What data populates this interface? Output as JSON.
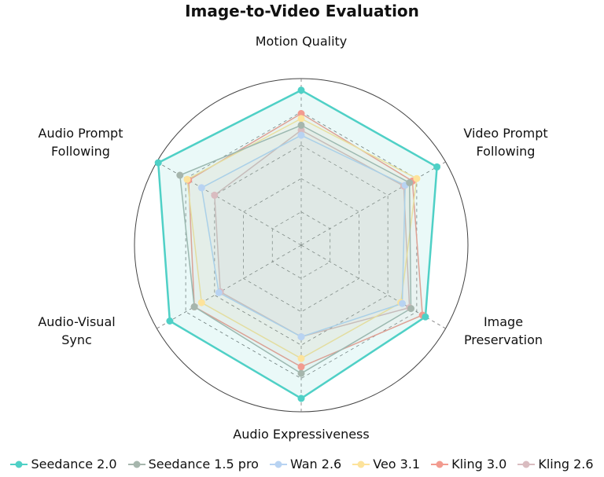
{
  "chart_data": {
    "type": "radar",
    "title": "Image-to-Video Evaluation",
    "categories": [
      "Motion Quality",
      "Video Prompt Following",
      "Image Preservation",
      "Audio Expressiveness",
      "Audio-Visual Sync",
      "Audio Prompt Following"
    ],
    "rlim": [
      0,
      100
    ],
    "rticks": [
      20,
      40,
      60,
      80
    ],
    "series": [
      {
        "name": "Seedance 2.0",
        "color": "#4fd0c6",
        "values": [
          93,
          94,
          86,
          92,
          91,
          99
        ]
      },
      {
        "name": "Seedance 1.5 pro",
        "color": "#a6b6ad",
        "values": [
          72,
          75,
          76,
          77,
          74,
          84
        ]
      },
      {
        "name": "Wan 2.6",
        "color": "#b8d3f2",
        "values": [
          66,
          72,
          70,
          55,
          57,
          69
        ]
      },
      {
        "name": "Veo 3.1",
        "color": "#fde39b",
        "values": [
          76,
          80,
          69,
          68,
          69,
          79
        ]
      },
      {
        "name": "Kling 3.0",
        "color": "#f29b8f",
        "values": [
          79,
          77,
          84,
          73,
          74,
          78
        ]
      },
      {
        "name": "Kling 2.6",
        "color": "#d9bcc0",
        "values": [
          69,
          71,
          75,
          55,
          56,
          60
        ]
      }
    ]
  }
}
